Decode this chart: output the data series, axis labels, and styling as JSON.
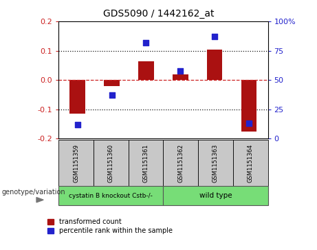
{
  "title": "GDS5090 / 1442162_at",
  "samples": [
    "GSM1151359",
    "GSM1151360",
    "GSM1151361",
    "GSM1151362",
    "GSM1151363",
    "GSM1151364"
  ],
  "bar_values": [
    -0.115,
    -0.02,
    0.063,
    0.018,
    0.103,
    -0.175
  ],
  "percentile_values": [
    12,
    37,
    82,
    58,
    87,
    13
  ],
  "ylim_left": [
    -0.2,
    0.2
  ],
  "ylim_right": [
    0,
    100
  ],
  "yticks_left": [
    -0.2,
    -0.1,
    0.0,
    0.1,
    0.2
  ],
  "yticks_right": [
    0,
    25,
    50,
    75,
    100
  ],
  "bar_color": "#aa1111",
  "dot_color": "#2222cc",
  "hline_color": "#cc2222",
  "dotline_color": "#111111",
  "group1_label": "cystatin B knockout Cstb-/-",
  "group2_label": "wild type",
  "group1_color": "#77dd77",
  "group2_color": "#77dd77",
  "legend_label1": "transformed count",
  "legend_label2": "percentile rank within the sample",
  "xlabel_label": "genotype/variation",
  "plot_bg": "#ffffff"
}
